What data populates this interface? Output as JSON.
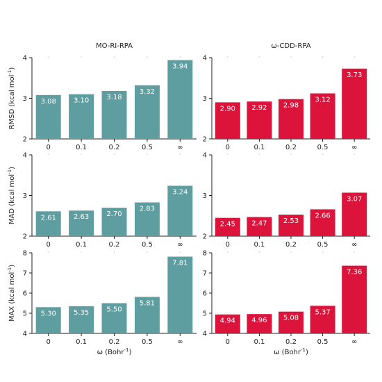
{
  "colors": {
    "left": "#5f9ea0",
    "right": "#dc143c"
  },
  "chart_data": [
    {
      "type": "bar",
      "title": "MO-RI-RPA",
      "ylabel": "RMSD (kcal mol⁻¹)",
      "xlabel": "",
      "categories": [
        "0",
        "0.1",
        "0.2",
        "0.5",
        "∞"
      ],
      "values": [
        3.08,
        3.1,
        3.18,
        3.32,
        3.94
      ],
      "value_labels": [
        "3.08",
        "3.10",
        "3.18",
        "3.32",
        "3.94"
      ],
      "ylim": [
        2,
        4
      ],
      "yticks": [
        "2",
        "3",
        "4"
      ],
      "yticks_values": [
        2,
        3,
        4
      ]
    },
    {
      "type": "bar",
      "title": "ω-CDD-RPA",
      "ylabel": "",
      "xlabel": "",
      "categories": [
        "0",
        "0.1",
        "0.2",
        "0.5",
        "∞"
      ],
      "values": [
        2.9,
        2.92,
        2.98,
        3.12,
        3.73
      ],
      "value_labels": [
        "2.90",
        "2.92",
        "2.98",
        "3.12",
        "3.73"
      ],
      "ylim": [
        2,
        4
      ],
      "yticks": [
        "2",
        "3",
        "4"
      ],
      "yticks_values": [
        2,
        3,
        4
      ]
    },
    {
      "type": "bar",
      "title": "",
      "ylabel": "MAD (kcal mol⁻¹)",
      "xlabel": "",
      "categories": [
        "0",
        "0.1",
        "0.2",
        "0.5",
        "∞"
      ],
      "values": [
        2.61,
        2.63,
        2.7,
        2.83,
        3.24
      ],
      "value_labels": [
        "2.61",
        "2.63",
        "2.70",
        "2.83",
        "3.24"
      ],
      "ylim": [
        2,
        4
      ],
      "yticks": [
        "2",
        "3",
        "4"
      ],
      "yticks_values": [
        2,
        3,
        4
      ]
    },
    {
      "type": "bar",
      "title": "",
      "ylabel": "",
      "xlabel": "",
      "categories": [
        "0",
        "0.1",
        "0.2",
        "0.5",
        "∞"
      ],
      "values": [
        2.45,
        2.47,
        2.53,
        2.66,
        3.07
      ],
      "value_labels": [
        "2.45",
        "2.47",
        "2.53",
        "2.66",
        "3.07"
      ],
      "ylim": [
        2,
        4
      ],
      "yticks": [
        "2",
        "3",
        "4"
      ],
      "yticks_values": [
        2,
        3,
        4
      ]
    },
    {
      "type": "bar",
      "title": "",
      "ylabel": "MAX (kcal mol⁻¹)",
      "xlabel": "ω (Bohr⁻¹)",
      "categories": [
        "0",
        "0.1",
        "0.2",
        "0.5",
        "∞"
      ],
      "values": [
        5.3,
        5.35,
        5.5,
        5.81,
        7.81
      ],
      "value_labels": [
        "5.30",
        "5.35",
        "5.50",
        "5.81",
        "7.81"
      ],
      "ylim": [
        4,
        8
      ],
      "yticks": [
        "4",
        "5",
        "6",
        "7",
        "8"
      ],
      "yticks_values": [
        4,
        5,
        6,
        7,
        8
      ]
    },
    {
      "type": "bar",
      "title": "",
      "ylabel": "",
      "xlabel": "ω (Bohr⁻¹)",
      "categories": [
        "0",
        "0.1",
        "0.2",
        "0.5",
        "∞"
      ],
      "values": [
        4.94,
        4.96,
        5.08,
        5.37,
        7.36
      ],
      "value_labels": [
        "4.94",
        "4.96",
        "5.08",
        "5.37",
        "7.36"
      ],
      "ylim": [
        4,
        8
      ],
      "yticks": [
        "4",
        "5",
        "6",
        "7",
        "8"
      ],
      "yticks_values": [
        4,
        5,
        6,
        7,
        8
      ]
    }
  ]
}
